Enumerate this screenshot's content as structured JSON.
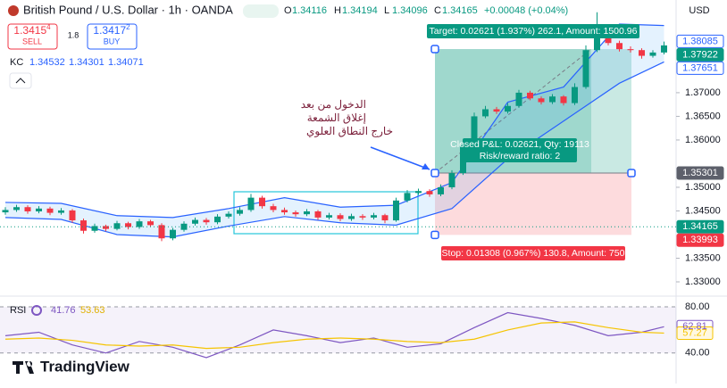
{
  "header": {
    "symbol": "British Pound / U.S. Dollar · 1h · OANDA",
    "ohlc": [
      {
        "label": "O",
        "value": 1.34116
      },
      {
        "label": "H",
        "value": 1.34194
      },
      {
        "label": "L",
        "value": 1.34096
      },
      {
        "label": "C",
        "value": 1.34165
      }
    ],
    "change": "+0.00048 (+0.04%)",
    "currency": "USD"
  },
  "trade_panel": {
    "sell_price": "1.3415",
    "sell_sup": "4",
    "sell_label": "SELL",
    "spread": "1.8",
    "buy_price": "1.3417",
    "buy_sup": "2",
    "buy_label": "BUY"
  },
  "indicator": {
    "name": "KC",
    "values": [
      1.34532,
      1.34301,
      1.34071
    ]
  },
  "chart_data": {
    "type": "candlestick",
    "open": [
      1.3447,
      1.3452,
      1.3458,
      1.3449,
      1.3455,
      1.3446,
      1.3451,
      1.343,
      1.3408,
      1.3418,
      1.3412,
      1.3424,
      1.3416,
      1.3428,
      1.342,
      1.3392,
      1.341,
      1.3423,
      1.3431,
      1.3426,
      1.3438,
      1.3444,
      1.3452,
      1.3478,
      1.346,
      1.3452,
      1.3447,
      1.3443,
      1.3449,
      1.3436,
      1.3441,
      1.3433,
      1.3439,
      1.3436,
      1.3441,
      1.343,
      1.3472,
      1.3488,
      1.3492,
      1.3485,
      1.35,
      1.353,
      1.3588,
      1.365,
      1.3665,
      1.366,
      1.3672,
      1.37,
      1.3688,
      1.368,
      1.3692,
      1.3678,
      1.3712,
      1.379,
      1.383,
      1.3805,
      1.3792,
      1.379,
      1.3778,
      1.3785
    ],
    "high": [
      1.3458,
      1.3463,
      1.3462,
      1.346,
      1.3459,
      1.3456,
      1.3454,
      1.3434,
      1.3423,
      1.3421,
      1.3429,
      1.3427,
      1.3433,
      1.3431,
      1.3424,
      1.3414,
      1.3428,
      1.3436,
      1.3435,
      1.3443,
      1.3449,
      1.3458,
      1.3486,
      1.3482,
      1.3465,
      1.3457,
      1.3451,
      1.3454,
      1.3452,
      1.3446,
      1.3445,
      1.3444,
      1.3443,
      1.3446,
      1.3444,
      1.3478,
      1.3494,
      1.3497,
      1.3496,
      1.3506,
      1.3536,
      1.3596,
      1.3658,
      1.3672,
      1.367,
      1.3678,
      1.3706,
      1.3704,
      1.3692,
      1.3697,
      1.3695,
      1.372,
      1.38,
      1.387,
      1.3836,
      1.381,
      1.3798,
      1.3794,
      1.379,
      1.3808
    ],
    "low": [
      1.3442,
      1.3448,
      1.3444,
      1.3445,
      1.3441,
      1.3442,
      1.3425,
      1.3402,
      1.3404,
      1.3407,
      1.3409,
      1.3411,
      1.3412,
      1.3416,
      1.3386,
      1.3388,
      1.3406,
      1.3419,
      1.3421,
      1.3422,
      1.3434,
      1.344,
      1.3448,
      1.3455,
      1.3447,
      1.3442,
      1.3438,
      1.3439,
      1.3431,
      1.3432,
      1.3428,
      1.3429,
      1.3431,
      1.3432,
      1.3424,
      1.3427,
      1.3468,
      1.3484,
      1.348,
      1.3481,
      1.3496,
      1.3526,
      1.3584,
      1.3646,
      1.3655,
      1.3656,
      1.3668,
      1.3684,
      1.3675,
      1.3676,
      1.3673,
      1.3674,
      1.3708,
      1.3786,
      1.38,
      1.3787,
      1.3785,
      1.3772,
      1.3774,
      1.3781
    ],
    "close": [
      1.3452,
      1.3458,
      1.3449,
      1.3455,
      1.3446,
      1.3451,
      1.343,
      1.3408,
      1.3418,
      1.3412,
      1.3424,
      1.3416,
      1.3428,
      1.342,
      1.3392,
      1.341,
      1.3423,
      1.3431,
      1.3426,
      1.3438,
      1.3444,
      1.3452,
      1.3478,
      1.346,
      1.3452,
      1.3447,
      1.3443,
      1.3449,
      1.3436,
      1.3441,
      1.3433,
      1.3439,
      1.3436,
      1.3441,
      1.343,
      1.3472,
      1.3488,
      1.3492,
      1.3485,
      1.35,
      1.353,
      1.3588,
      1.365,
      1.3665,
      1.366,
      1.3672,
      1.37,
      1.3688,
      1.368,
      1.3692,
      1.3678,
      1.3712,
      1.379,
      1.383,
      1.3805,
      1.3792,
      1.379,
      1.3778,
      1.3785,
      1.38
    ],
    "ylim": [
      1.32736,
      1.3896
    ],
    "yticks": [
      {
        "value": 1.37,
        "label": "1.37000"
      },
      {
        "value": 1.365,
        "label": "1.36500"
      },
      {
        "value": 1.36,
        "label": "1.36000"
      },
      {
        "value": 1.35,
        "label": "1.35000"
      },
      {
        "value": 1.345,
        "label": "1.34500"
      },
      {
        "value": 1.335,
        "label": "1.33500"
      },
      {
        "value": 1.33,
        "label": "1.33000"
      }
    ],
    "price_tags": [
      1.38085,
      1.37651,
      1.34165
    ],
    "kc": {
      "index": [
        0,
        5,
        10,
        15,
        20,
        25,
        30,
        35,
        40,
        45,
        50,
        55,
        59
      ],
      "upper": [
        1.3468,
        1.3466,
        1.344,
        1.3436,
        1.3455,
        1.3478,
        1.3458,
        1.3462,
        1.351,
        1.368,
        1.3712,
        1.3845,
        1.3842
      ],
      "lower": [
        1.3436,
        1.3432,
        1.34,
        1.3395,
        1.3418,
        1.3438,
        1.3425,
        1.342,
        1.3455,
        1.356,
        1.364,
        1.372,
        1.3765
      ]
    },
    "position": {
      "target": 1.37922,
      "entry": 1.35301,
      "stop": 1.33993,
      "target_label": "Target: 0.02621 (1.937%) 262.1, Amount: 1500.96",
      "pnl_label": "Closed P&L: 0.02621, Qty: 19113",
      "rr_label": "Risk/reward ratio: 2",
      "stop_label": "Stop: 0.01308 (0.967%) 130.8, Amount: 750"
    },
    "annotation": [
      "الدخول من بعد",
      "إغلاق الشمعة",
      "خارج النطاق العلوي"
    ]
  },
  "rsi": {
    "name": "RSI",
    "header_values": [
      41.76,
      53.63
    ],
    "index": [
      0,
      3,
      6,
      9,
      12,
      15,
      18,
      21,
      24,
      27,
      30,
      33,
      36,
      39,
      42,
      45,
      48,
      51,
      54,
      57,
      59
    ],
    "values": [
      55,
      58,
      47,
      40,
      50,
      45,
      36,
      47,
      60,
      55,
      49,
      53,
      45,
      48,
      62,
      75,
      70,
      64,
      55,
      58,
      62.81
    ],
    "ma": [
      52,
      53,
      51,
      47,
      46,
      47,
      44,
      45,
      49,
      52,
      53,
      52,
      50,
      49,
      52,
      60,
      66,
      67,
      62,
      58,
      57.27
    ],
    "ylim": [
      29,
      87
    ],
    "yticks": [
      {
        "value": 80,
        "label": "80.00"
      },
      {
        "value": 40,
        "label": "40.00"
      }
    ]
  },
  "logo": "TradingView"
}
